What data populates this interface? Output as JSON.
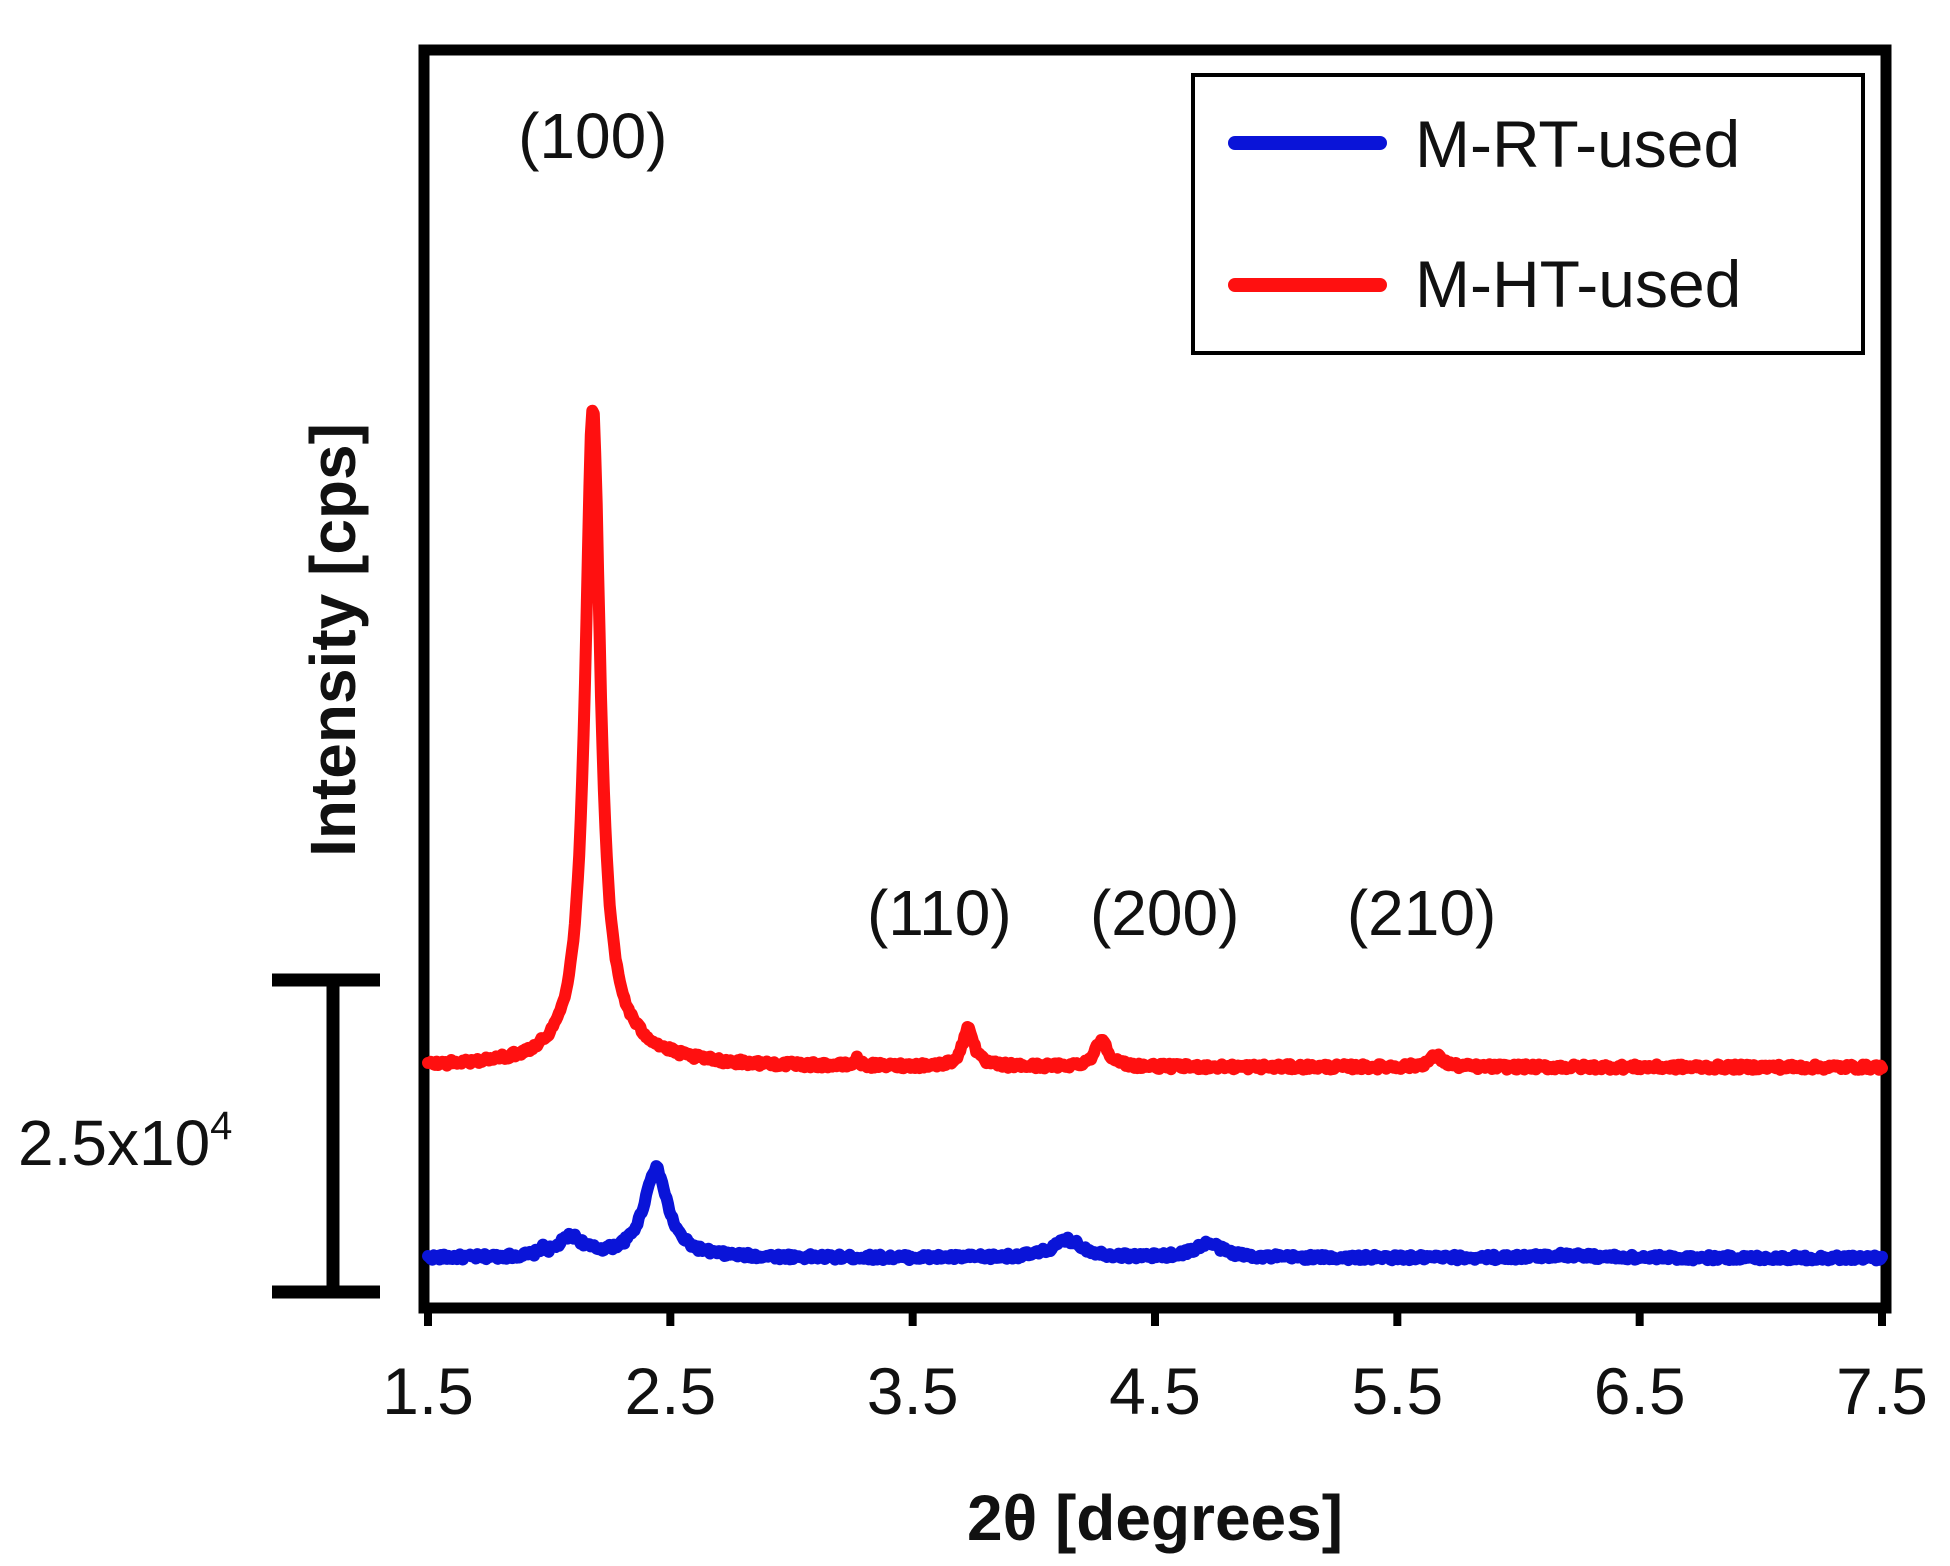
{
  "chart_data": {
    "type": "line",
    "title": "",
    "xlabel": "2θ [degrees]",
    "ylabel": "Intensity [cps]",
    "xlim": [
      1.5,
      7.5
    ],
    "x_ticks": [
      "1.5",
      "2.5",
      "3.5",
      "4.5",
      "5.5",
      "6.5",
      "7.5"
    ],
    "y_units": "cps",
    "ylim": [
      0,
      110000
    ],
    "grid": false,
    "legend_position": "top-right",
    "scale_bar": {
      "label": "2.5x10",
      "superscript": "4",
      "value": 25000
    },
    "series": [
      {
        "name": "M-RT-used",
        "color": "#0a14d8",
        "offset": 0,
        "baseline": 1300,
        "noise": 250,
        "peaks": [
          {
            "x": 1.97,
            "height": 500,
            "width": 0.03
          },
          {
            "x": 2.09,
            "height": 1800,
            "width": 0.12
          },
          {
            "x": 2.44,
            "height": 8200,
            "width": 0.12
          },
          {
            "x": 4.14,
            "height": 1600,
            "width": 0.15
          },
          {
            "x": 4.72,
            "height": 1300,
            "width": 0.14
          },
          {
            "x": 6.2,
            "height": 250,
            "width": 0.25
          }
        ]
      },
      {
        "name": "M-HT-used",
        "color": "#ff1010",
        "offset": 18600,
        "baseline": 300,
        "noise": 250,
        "peaks": [
          {
            "x": 2.18,
            "height": 59000,
            "width": 0.075
          },
          {
            "x": 2.25,
            "height": 2000,
            "width": 0.4
          },
          {
            "x": 3.27,
            "height": 600,
            "width": 0.025
          },
          {
            "x": 3.73,
            "height": 3600,
            "width": 0.055
          },
          {
            "x": 4.28,
            "height": 2500,
            "width": 0.065
          },
          {
            "x": 5.66,
            "height": 1000,
            "width": 0.07
          }
        ]
      }
    ],
    "annotations": [
      {
        "text": "(100)",
        "x": 2.18,
        "series": "M-HT-used"
      },
      {
        "text": "(110)",
        "x": 3.61,
        "series": "M-HT-used"
      },
      {
        "text": "(200)",
        "x": 4.54,
        "series": "M-HT-used"
      },
      {
        "text": "(210)",
        "x": 5.6,
        "series": "M-HT-used"
      }
    ]
  }
}
